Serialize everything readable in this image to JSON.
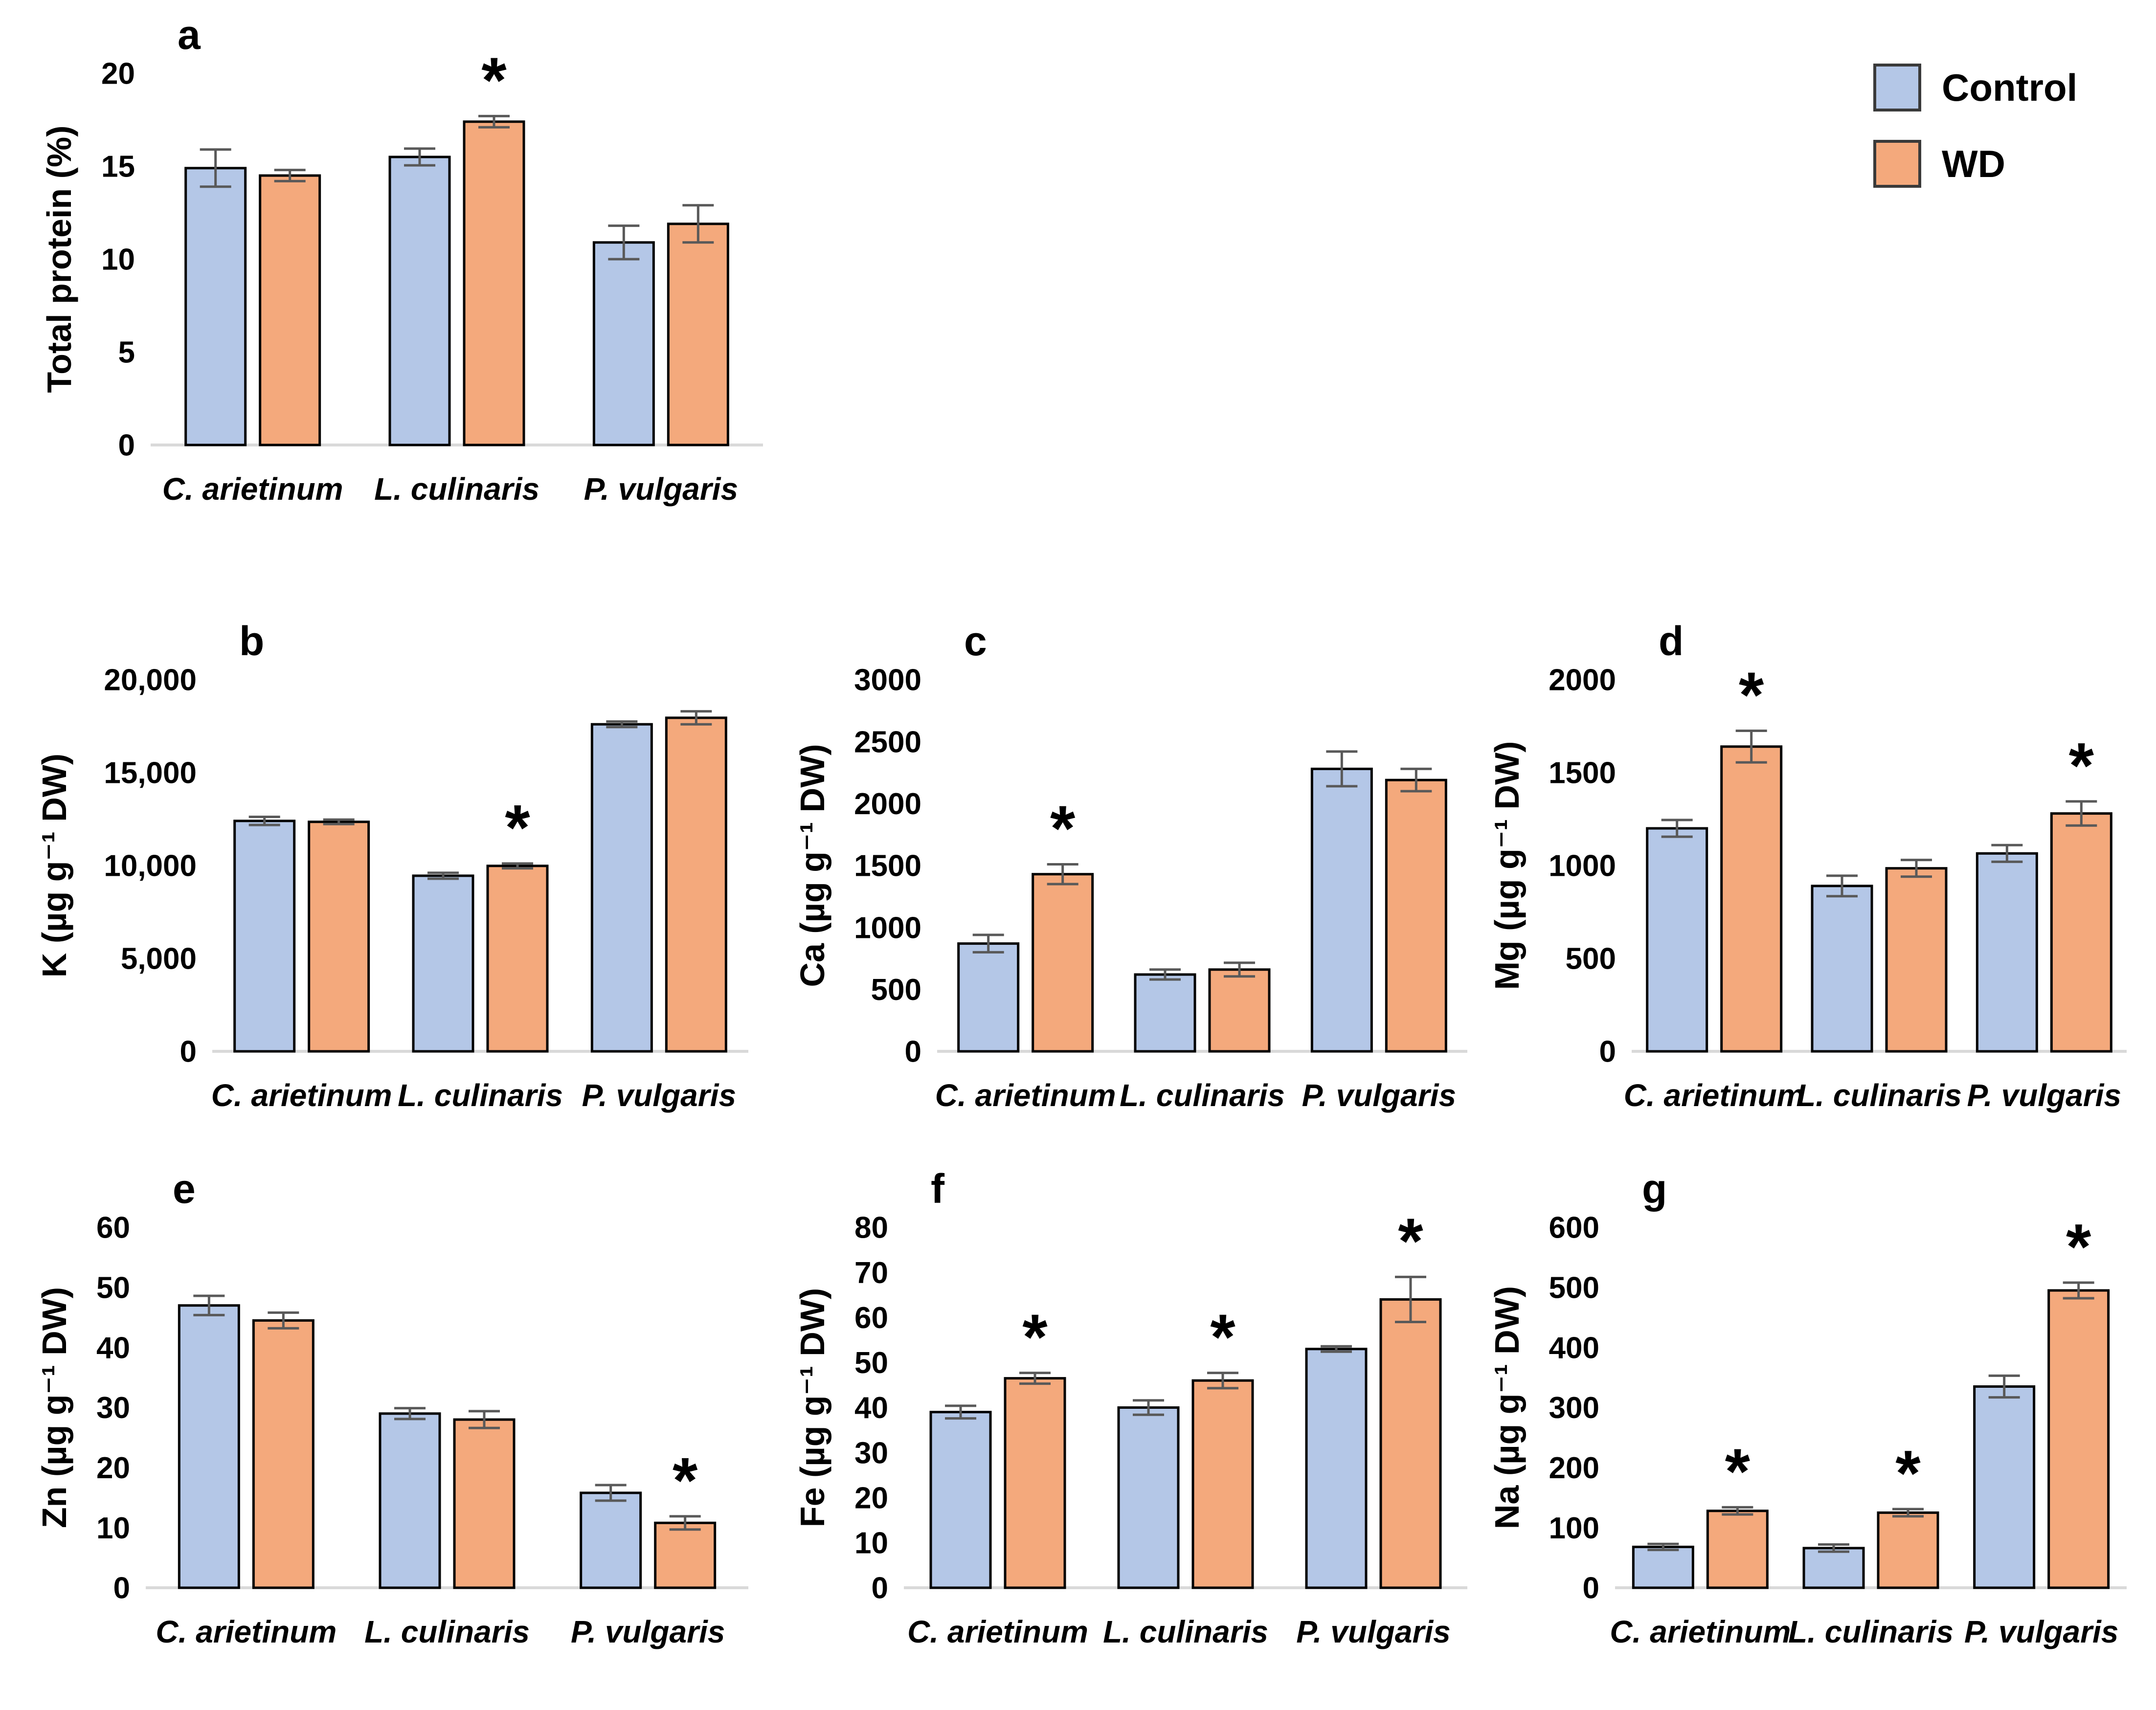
{
  "figure": {
    "legend": {
      "position": "top-right",
      "items": [
        {
          "label": "Control",
          "color": "#b4c7e7"
        },
        {
          "label": "WD",
          "color": "#f4a97c"
        }
      ]
    },
    "style": {
      "bar_border_color": "#000000",
      "error_bar_color": "#595959",
      "baseline_color": "#d9d9d9",
      "text_color": "#000000",
      "significance_marker": "*"
    }
  },
  "chart_data": [
    {
      "type": "bar",
      "panel": "a",
      "title": "",
      "xlabel": "",
      "ylabel": "Total protein (%)",
      "ylim": [
        0,
        20
      ],
      "yticks": [
        {
          "v": 0,
          "label": "0"
        },
        {
          "v": 5,
          "label": "5"
        },
        {
          "v": 10,
          "label": "10"
        },
        {
          "v": 15,
          "label": "15"
        },
        {
          "v": 20,
          "label": "20"
        }
      ],
      "grid": false,
      "categories": [
        "C. arietinum",
        "L. culinaris",
        "P. vulgaris"
      ],
      "series": [
        {
          "name": "Control",
          "values": [
            14.9,
            15.5,
            10.9
          ],
          "errors": [
            1.0,
            0.45,
            0.9
          ],
          "sig": [
            false,
            false,
            false
          ]
        },
        {
          "name": "WD",
          "values": [
            14.5,
            17.4,
            11.9
          ],
          "errors": [
            0.3,
            0.3,
            1.0
          ],
          "sig": [
            false,
            true,
            false
          ]
        }
      ]
    },
    {
      "type": "bar",
      "panel": "b",
      "title": "",
      "xlabel": "",
      "ylabel": "K (µg g⁻¹ DW)",
      "ylim": [
        0,
        20000
      ],
      "yticks": [
        {
          "v": 0,
          "label": "0"
        },
        {
          "v": 5000,
          "label": "5,000"
        },
        {
          "v": 10000,
          "label": "10,000"
        },
        {
          "v": 15000,
          "label": "15,000"
        },
        {
          "v": 20000,
          "label": "20,000"
        }
      ],
      "grid": false,
      "categories": [
        "C. arietinum",
        "L. culinaris",
        "P. vulgaris"
      ],
      "series": [
        {
          "name": "Control",
          "values": [
            12400,
            9450,
            17600
          ],
          "errors": [
            220,
            160,
            150
          ],
          "sig": [
            false,
            false,
            false
          ]
        },
        {
          "name": "WD",
          "values": [
            12350,
            9980,
            17950
          ],
          "errors": [
            120,
            130,
            350
          ],
          "sig": [
            false,
            true,
            false
          ]
        }
      ]
    },
    {
      "type": "bar",
      "panel": "c",
      "title": "",
      "xlabel": "",
      "ylabel": "Ca (µg g⁻¹ DW)",
      "ylim": [
        0,
        3000
      ],
      "yticks": [
        {
          "v": 0,
          "label": "0"
        },
        {
          "v": 500,
          "label": "500"
        },
        {
          "v": 1000,
          "label": "1000"
        },
        {
          "v": 1500,
          "label": "1500"
        },
        {
          "v": 2000,
          "label": "2000"
        },
        {
          "v": 2500,
          "label": "2500"
        },
        {
          "v": 3000,
          "label": "3000"
        }
      ],
      "grid": false,
      "categories": [
        "C. arietinum",
        "L. culinaris",
        "P. vulgaris"
      ],
      "series": [
        {
          "name": "Control",
          "values": [
            870,
            620,
            2280
          ],
          "errors": [
            70,
            40,
            140
          ],
          "sig": [
            false,
            false,
            false
          ]
        },
        {
          "name": "WD",
          "values": [
            1430,
            660,
            2190
          ],
          "errors": [
            80,
            55,
            90
          ],
          "sig": [
            true,
            false,
            false
          ]
        }
      ]
    },
    {
      "type": "bar",
      "panel": "d",
      "title": "",
      "xlabel": "",
      "ylabel": "Mg (µg g⁻¹ DW)",
      "ylim": [
        0,
        2000
      ],
      "yticks": [
        {
          "v": 0,
          "label": "0"
        },
        {
          "v": 500,
          "label": "500"
        },
        {
          "v": 1000,
          "label": "1000"
        },
        {
          "v": 1500,
          "label": "1500"
        },
        {
          "v": 2000,
          "label": "2000"
        }
      ],
      "grid": false,
      "categories": [
        "C. arietinum",
        "L. culinaris",
        "P. vulgaris"
      ],
      "series": [
        {
          "name": "Control",
          "values": [
            1200,
            890,
            1065
          ],
          "errors": [
            45,
            55,
            45
          ],
          "sig": [
            false,
            false,
            false
          ]
        },
        {
          "name": "WD",
          "values": [
            1640,
            985,
            1280
          ],
          "errors": [
            85,
            45,
            65
          ],
          "sig": [
            true,
            false,
            true
          ]
        }
      ]
    },
    {
      "type": "bar",
      "panel": "e",
      "title": "",
      "xlabel": "",
      "ylabel": "Zn (µg g⁻¹ DW)",
      "ylim": [
        0,
        60
      ],
      "yticks": [
        {
          "v": 0,
          "label": "0"
        },
        {
          "v": 10,
          "label": "10"
        },
        {
          "v": 20,
          "label": "20"
        },
        {
          "v": 30,
          "label": "30"
        },
        {
          "v": 40,
          "label": "40"
        },
        {
          "v": 50,
          "label": "50"
        },
        {
          "v": 60,
          "label": "60"
        }
      ],
      "grid": false,
      "categories": [
        "C. arietinum",
        "L. culinaris",
        "P. vulgaris"
      ],
      "series": [
        {
          "name": "Control",
          "values": [
            47,
            29,
            15.8
          ],
          "errors": [
            1.6,
            0.9,
            1.3
          ],
          "sig": [
            false,
            false,
            false
          ]
        },
        {
          "name": "WD",
          "values": [
            44.5,
            28,
            10.8
          ],
          "errors": [
            1.3,
            1.4,
            1.1
          ],
          "sig": [
            false,
            false,
            true
          ]
        }
      ]
    },
    {
      "type": "bar",
      "panel": "f",
      "title": "",
      "xlabel": "",
      "ylabel": "Fe (µg g⁻¹ DW)",
      "ylim": [
        0,
        80
      ],
      "yticks": [
        {
          "v": 0,
          "label": "0"
        },
        {
          "v": 10,
          "label": "10"
        },
        {
          "v": 20,
          "label": "20"
        },
        {
          "v": 30,
          "label": "30"
        },
        {
          "v": 40,
          "label": "40"
        },
        {
          "v": 50,
          "label": "50"
        },
        {
          "v": 60,
          "label": "60"
        },
        {
          "v": 70,
          "label": "70"
        },
        {
          "v": 80,
          "label": "80"
        }
      ],
      "grid": false,
      "categories": [
        "C. arietinum",
        "L. culinaris",
        "P. vulgaris"
      ],
      "series": [
        {
          "name": "Control",
          "values": [
            39,
            40,
            53
          ],
          "errors": [
            1.4,
            1.6,
            0.6
          ],
          "sig": [
            false,
            false,
            false
          ]
        },
        {
          "name": "WD",
          "values": [
            46.5,
            46,
            64
          ],
          "errors": [
            1.2,
            1.7,
            5.0
          ],
          "sig": [
            true,
            true,
            true
          ]
        }
      ]
    },
    {
      "type": "bar",
      "panel": "g",
      "title": "",
      "xlabel": "",
      "ylabel": "Na (µg g⁻¹ DW)",
      "ylim": [
        0,
        600
      ],
      "yticks": [
        {
          "v": 0,
          "label": "0"
        },
        {
          "v": 100,
          "label": "100"
        },
        {
          "v": 200,
          "label": "200"
        },
        {
          "v": 300,
          "label": "300"
        },
        {
          "v": 400,
          "label": "400"
        },
        {
          "v": 500,
          "label": "500"
        },
        {
          "v": 600,
          "label": "600"
        }
      ],
      "grid": false,
      "categories": [
        "C. arietinum",
        "L. culinaris",
        "P. vulgaris"
      ],
      "series": [
        {
          "name": "Control",
          "values": [
            68,
            66,
            335
          ],
          "errors": [
            5,
            6,
            18
          ],
          "sig": [
            false,
            false,
            false
          ]
        },
        {
          "name": "WD",
          "values": [
            128,
            125,
            495
          ],
          "errors": [
            6,
            6,
            13
          ],
          "sig": [
            true,
            true,
            true
          ]
        }
      ]
    }
  ]
}
